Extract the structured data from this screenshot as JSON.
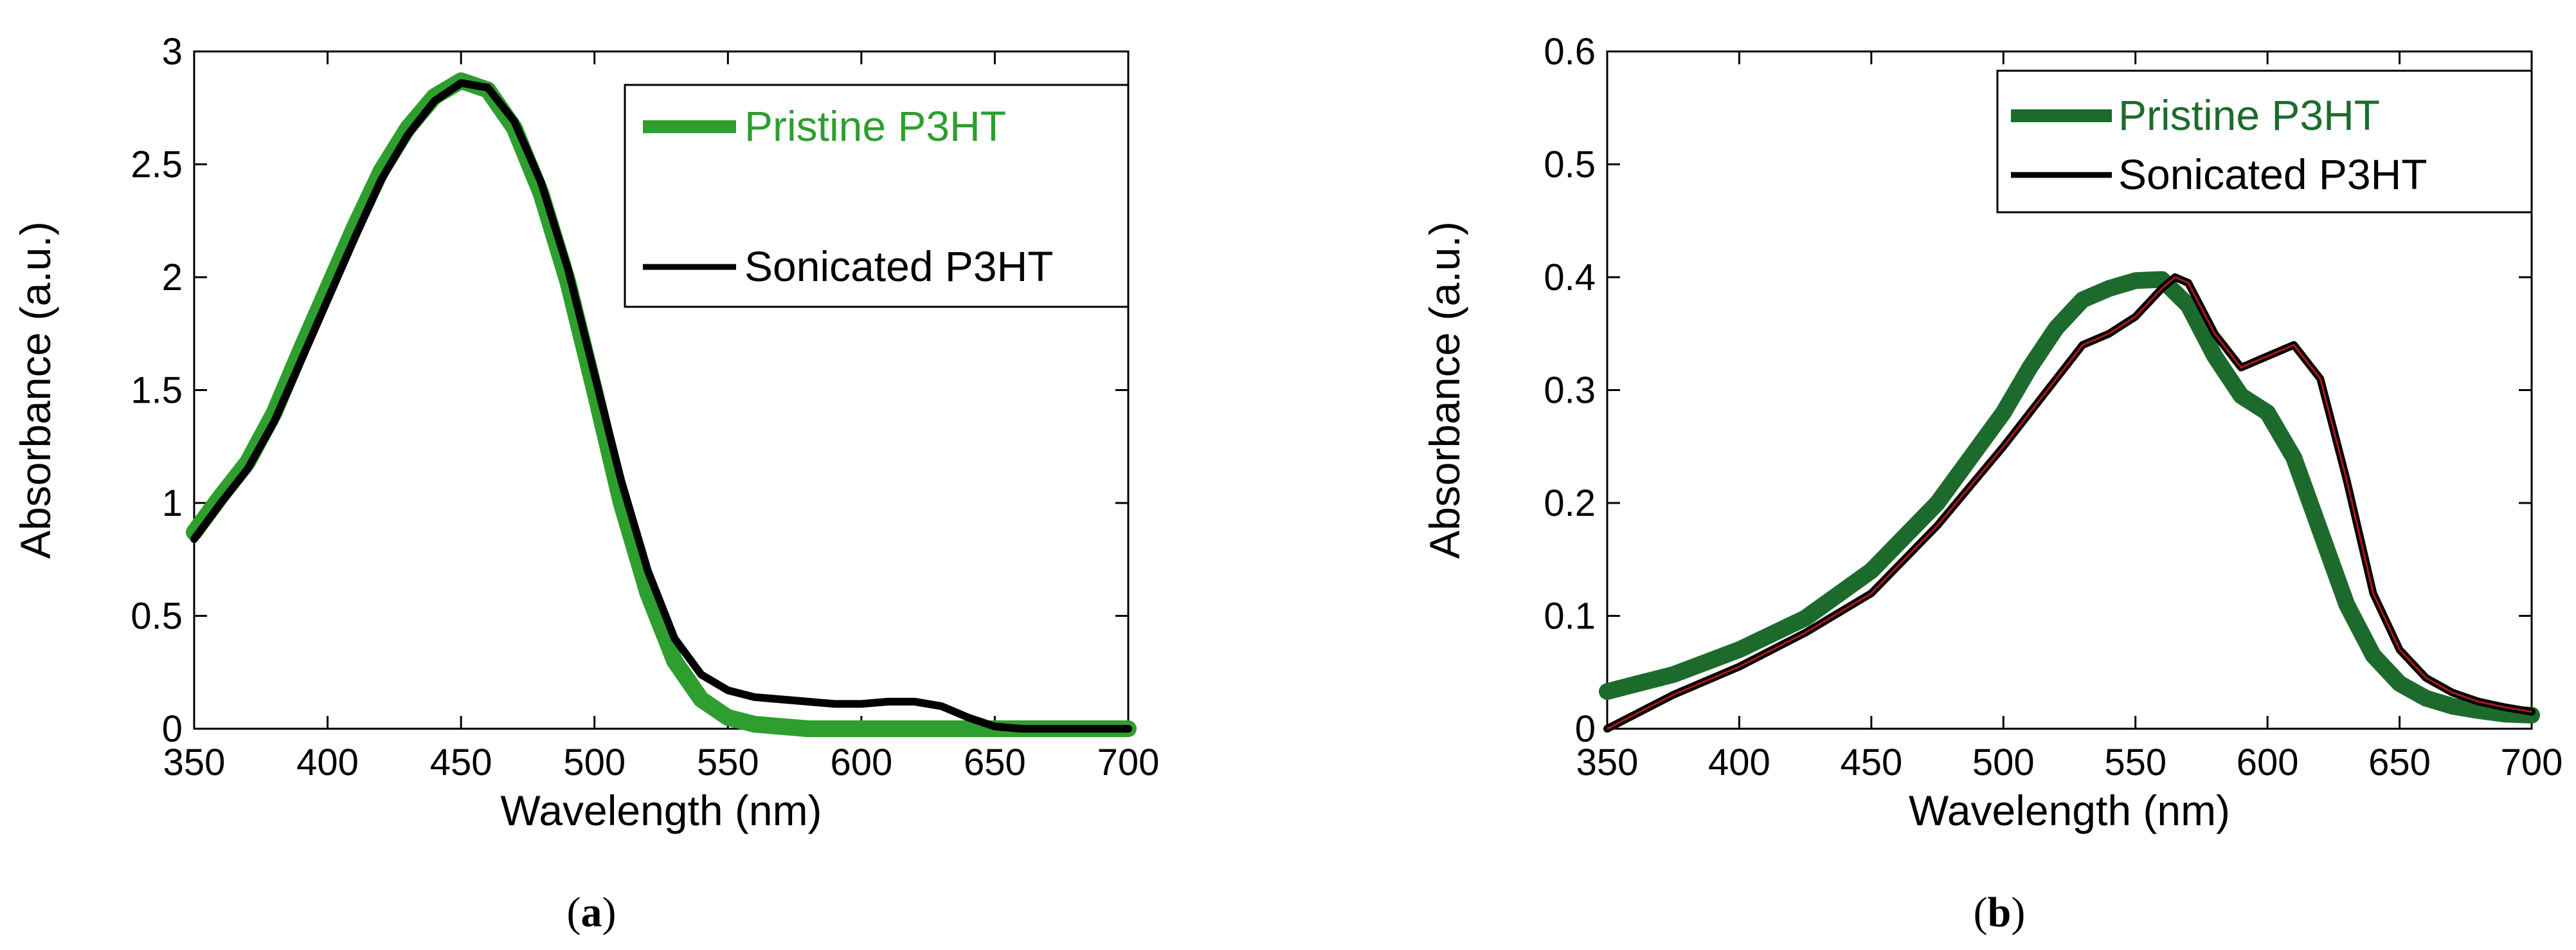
{
  "chart_data": [
    {
      "type": "line",
      "panel_label": "a",
      "xlabel": "Wavelength (nm)",
      "ylabel": "Absorbance (a.u.)",
      "xlim": [
        350,
        700
      ],
      "ylim": [
        0,
        3
      ],
      "xticks": [
        "350",
        "400",
        "450",
        "500",
        "550",
        "600",
        "650",
        "700"
      ],
      "yticks": [
        "0",
        "0.5",
        "1",
        "1.5",
        "2",
        "2.5",
        "3"
      ],
      "grid": false,
      "legend_position": "top-right",
      "series": [
        {
          "name": "Pristine P3HT",
          "color": "#2e9e2e",
          "x": [
            350,
            360,
            370,
            380,
            390,
            400,
            410,
            420,
            430,
            440,
            450,
            460,
            470,
            480,
            490,
            500,
            510,
            520,
            530,
            540,
            550,
            560,
            570,
            580,
            600,
            650,
            700
          ],
          "y": [
            0.87,
            1.03,
            1.18,
            1.4,
            1.68,
            1.95,
            2.22,
            2.47,
            2.66,
            2.8,
            2.87,
            2.83,
            2.66,
            2.37,
            1.98,
            1.5,
            1.0,
            0.6,
            0.3,
            0.13,
            0.05,
            0.02,
            0.01,
            0.0,
            0.0,
            0.0,
            0.0
          ]
        },
        {
          "name": "Sonicated P3HT",
          "color": "#000000",
          "x": [
            350,
            360,
            370,
            380,
            390,
            400,
            410,
            420,
            430,
            440,
            450,
            460,
            470,
            480,
            490,
            500,
            510,
            520,
            530,
            540,
            550,
            560,
            570,
            580,
            590,
            600,
            610,
            620,
            630,
            640,
            650,
            660,
            700
          ],
          "y": [
            0.84,
            1.0,
            1.15,
            1.36,
            1.63,
            1.9,
            2.17,
            2.43,
            2.63,
            2.78,
            2.86,
            2.84,
            2.69,
            2.42,
            2.04,
            1.57,
            1.1,
            0.7,
            0.4,
            0.24,
            0.17,
            0.14,
            0.13,
            0.12,
            0.11,
            0.11,
            0.12,
            0.12,
            0.1,
            0.05,
            0.01,
            0.0,
            0.0
          ]
        }
      ]
    },
    {
      "type": "line",
      "panel_label": "b",
      "xlabel": "Wavelength (nm)",
      "ylabel": "Absorbance (a.u.)",
      "xlim": [
        350,
        700
      ],
      "ylim": [
        0,
        0.6
      ],
      "xticks": [
        "350",
        "400",
        "450",
        "500",
        "550",
        "600",
        "650",
        "700"
      ],
      "yticks": [
        "0",
        "0.1",
        "0.2",
        "0.3",
        "0.4",
        "0.5",
        "0.6"
      ],
      "grid": false,
      "legend_position": "top-right",
      "series": [
        {
          "name": "Pristine P3HT",
          "color": "#1d6b2c",
          "x": [
            350,
            375,
            400,
            425,
            450,
            475,
            500,
            510,
            520,
            530,
            540,
            550,
            560,
            570,
            580,
            590,
            600,
            610,
            620,
            630,
            640,
            650,
            660,
            670,
            680,
            690,
            700
          ],
          "y": [
            0.033,
            0.048,
            0.07,
            0.098,
            0.14,
            0.2,
            0.28,
            0.32,
            0.355,
            0.38,
            0.39,
            0.397,
            0.398,
            0.375,
            0.33,
            0.295,
            0.28,
            0.24,
            0.175,
            0.11,
            0.065,
            0.04,
            0.027,
            0.02,
            0.016,
            0.013,
            0.012
          ]
        },
        {
          "name": "Sonicated P3HT",
          "color": "#000000",
          "x": [
            350,
            375,
            400,
            425,
            450,
            475,
            500,
            510,
            520,
            530,
            540,
            550,
            560,
            565,
            570,
            580,
            590,
            600,
            610,
            620,
            630,
            640,
            650,
            660,
            670,
            680,
            690,
            700
          ],
          "y": [
            0.0,
            0.03,
            0.055,
            0.085,
            0.12,
            0.18,
            0.25,
            0.28,
            0.31,
            0.34,
            0.35,
            0.365,
            0.39,
            0.4,
            0.395,
            0.35,
            0.32,
            0.33,
            0.34,
            0.31,
            0.22,
            0.12,
            0.07,
            0.045,
            0.032,
            0.024,
            0.019,
            0.015
          ]
        }
      ]
    }
  ]
}
